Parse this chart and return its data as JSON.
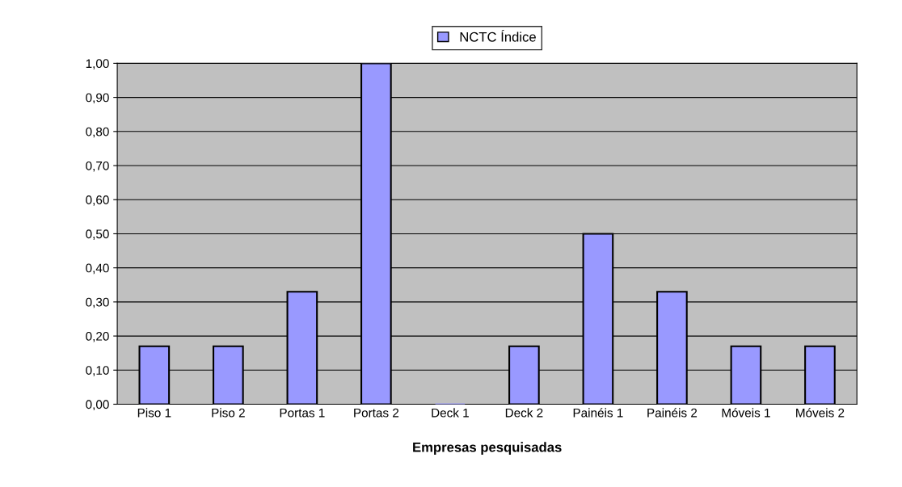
{
  "chart_data": {
    "type": "bar",
    "xlabel": "Empresas pesquisadas",
    "categories": [
      "Piso 1",
      "Piso 2",
      "Portas 1",
      "Portas 2",
      "Deck 1",
      "Deck 2",
      "Painéis 1",
      "Painéis 2",
      "Móveis 1",
      "Móveis 2"
    ],
    "series": [
      {
        "name": "NCTC Índice",
        "color": "#9999ff",
        "values": [
          0.17,
          0.17,
          0.33,
          1.0,
          0.0,
          0.17,
          0.5,
          0.33,
          0.17,
          0.17
        ]
      }
    ],
    "ylim": [
      0,
      1
    ],
    "yticks": [
      {
        "value": 0,
        "label": "0,00"
      },
      {
        "value": 0.1,
        "label": "0,10"
      },
      {
        "value": 0.2,
        "label": "0,20"
      },
      {
        "value": 0.3,
        "label": "0,30"
      },
      {
        "value": 0.4,
        "label": "0,40"
      },
      {
        "value": 0.5,
        "label": "0,50"
      },
      {
        "value": 0.6,
        "label": "0,60"
      },
      {
        "value": 0.7,
        "label": "0,70"
      },
      {
        "value": 0.8,
        "label": "0,80"
      },
      {
        "value": 0.9,
        "label": "0,90"
      },
      {
        "value": 1.0,
        "label": "1,00"
      }
    ],
    "grid": "y",
    "legend": "top"
  }
}
